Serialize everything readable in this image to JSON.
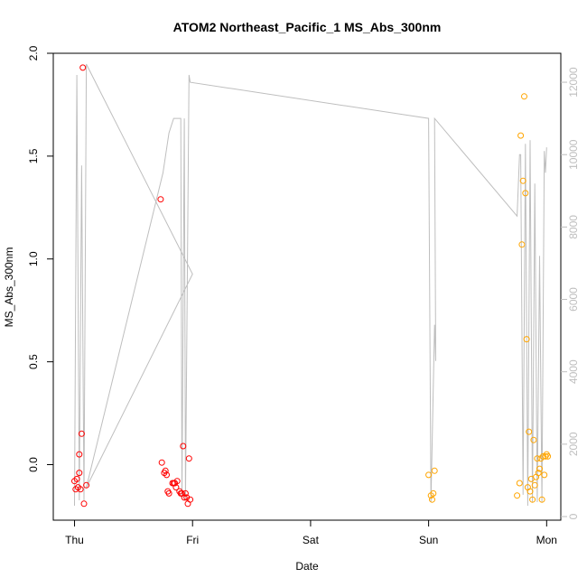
{
  "chart_data": {
    "type": "scatter",
    "title": "ATOM2 Northeast_Pacific_1 MS_Abs_300nm",
    "xlabel": "Date",
    "ylabel": "MS_Abs_300nm",
    "x_ticks": [
      "Thu",
      "Fri",
      "Sat",
      "Sun",
      "Mon"
    ],
    "x_tick_days": [
      0,
      1,
      2,
      3,
      4
    ],
    "xlim": [
      -0.18,
      4.12
    ],
    "ylim": [
      -0.27,
      2.0
    ],
    "y_ticks": [
      "0.0",
      "0.5",
      "1.0",
      "1.5",
      "2.0"
    ],
    "y_tick_values": [
      0.0,
      0.5,
      1.0,
      1.5,
      2.0
    ],
    "y2lim": [
      -100,
      12800
    ],
    "y2_ticks": [
      "0",
      "2000",
      "4000",
      "6000",
      "8000",
      "10000",
      "12000"
    ],
    "y2_tick_values": [
      0,
      2000,
      4000,
      6000,
      8000,
      10000,
      12000
    ],
    "colors": {
      "red": "#ff0000",
      "orange": "#ffa500",
      "gray": "#bebebe",
      "axis": "#000000"
    },
    "grid": false,
    "legend": "none",
    "series": [
      {
        "color": "red",
        "points": [
          [
            0.0,
            -0.08
          ],
          [
            0.01,
            -0.12
          ],
          [
            0.02,
            -0.07
          ],
          [
            0.03,
            -0.11
          ],
          [
            0.04,
            -0.04
          ],
          [
            0.04,
            0.05
          ],
          [
            0.05,
            -0.12
          ],
          [
            0.06,
            0.15
          ],
          [
            0.07,
            1.93
          ],
          [
            0.08,
            -0.19
          ],
          [
            0.1,
            -0.1
          ],
          [
            0.73,
            1.29
          ],
          [
            0.74,
            0.01
          ],
          [
            0.76,
            -0.04
          ],
          [
            0.77,
            -0.03
          ],
          [
            0.78,
            -0.05
          ],
          [
            0.79,
            -0.13
          ],
          [
            0.8,
            -0.14
          ],
          [
            0.83,
            -0.09
          ],
          [
            0.84,
            -0.09
          ],
          [
            0.85,
            -0.09
          ],
          [
            0.86,
            -0.11
          ],
          [
            0.87,
            -0.08
          ],
          [
            0.89,
            -0.13
          ],
          [
            0.9,
            -0.14
          ],
          [
            0.91,
            -0.14
          ],
          [
            0.92,
            0.09
          ],
          [
            0.93,
            -0.16
          ],
          [
            0.94,
            -0.14
          ],
          [
            0.95,
            -0.16
          ],
          [
            0.97,
            0.03
          ],
          [
            0.96,
            -0.19
          ],
          [
            0.98,
            -0.17
          ]
        ]
      },
      {
        "color": "orange",
        "points": [
          [
            3.0,
            -0.05
          ],
          [
            3.02,
            -0.15
          ],
          [
            3.03,
            -0.17
          ],
          [
            3.04,
            -0.14
          ],
          [
            3.05,
            -0.03
          ],
          [
            3.75,
            -0.15
          ],
          [
            3.77,
            -0.09
          ],
          [
            3.78,
            1.6
          ],
          [
            3.79,
            1.07
          ],
          [
            3.8,
            1.38
          ],
          [
            3.81,
            1.79
          ],
          [
            3.82,
            1.32
          ],
          [
            3.83,
            0.61
          ],
          [
            3.84,
            -0.11
          ],
          [
            3.85,
            0.16
          ],
          [
            3.86,
            -0.13
          ],
          [
            3.87,
            -0.07
          ],
          [
            3.88,
            -0.17
          ],
          [
            3.89,
            0.12
          ],
          [
            3.9,
            -0.1
          ],
          [
            3.91,
            -0.06
          ],
          [
            3.92,
            0.03
          ],
          [
            3.93,
            -0.04
          ],
          [
            3.94,
            -0.02
          ],
          [
            3.95,
            0.03
          ],
          [
            3.96,
            -0.17
          ],
          [
            3.97,
            0.04
          ],
          [
            3.98,
            -0.05
          ],
          [
            3.99,
            0.04
          ],
          [
            4.0,
            0.05
          ],
          [
            4.01,
            0.04
          ]
        ]
      }
    ],
    "line_series": {
      "color": "gray",
      "axis": "right",
      "points": [
        [
          0.0,
          300
        ],
        [
          0.02,
          12200
        ],
        [
          0.04,
          450
        ],
        [
          0.06,
          9700
        ],
        [
          0.08,
          450
        ],
        [
          0.1,
          12500
        ],
        [
          1.0,
          6700
        ],
        [
          0.1,
          800
        ],
        [
          0.75,
          9500
        ],
        [
          0.8,
          10600
        ],
        [
          0.84,
          11000
        ],
        [
          0.9,
          11000
        ],
        [
          0.91,
          500
        ],
        [
          0.93,
          11000
        ],
        [
          0.94,
          450
        ],
        [
          0.97,
          12200
        ],
        [
          0.98,
          12000
        ],
        [
          3.0,
          11000
        ],
        [
          3.02,
          400
        ],
        [
          3.05,
          5300
        ],
        [
          3.06,
          4300
        ],
        [
          3.05,
          11000
        ],
        [
          3.75,
          8300
        ],
        [
          3.77,
          10000
        ],
        [
          3.78,
          10000
        ],
        [
          3.8,
          600
        ],
        [
          3.82,
          10300
        ],
        [
          3.84,
          300
        ],
        [
          3.86,
          10400
        ],
        [
          3.88,
          400
        ],
        [
          3.9,
          9200
        ],
        [
          3.92,
          400
        ],
        [
          3.94,
          7200
        ],
        [
          3.96,
          400
        ],
        [
          3.98,
          10100
        ],
        [
          3.99,
          9500
        ],
        [
          4.0,
          10200
        ]
      ]
    }
  }
}
